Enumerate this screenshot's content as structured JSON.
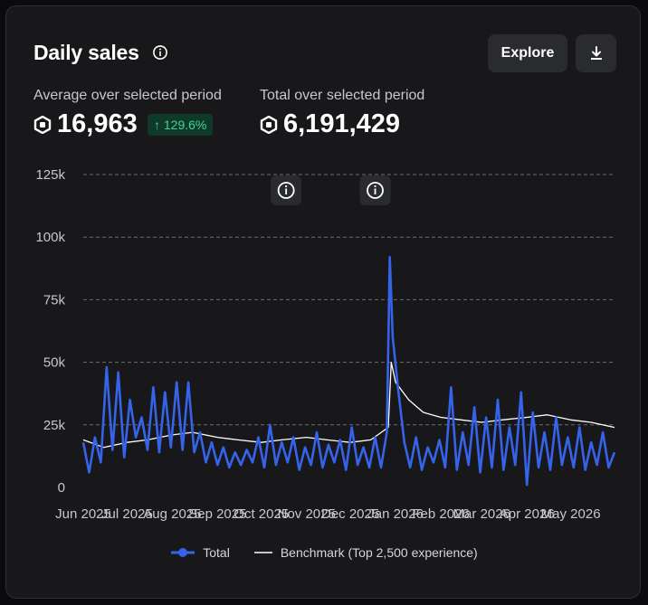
{
  "card": {
    "title": "Daily sales",
    "explore_label": "Explore",
    "download_icon": "download-icon",
    "info_icon": "info-icon"
  },
  "stats": {
    "average_label": "Average over selected period",
    "average_value": "16,963",
    "average_change": "↑ 129.6%",
    "total_label": "Total over selected period",
    "total_value": "6,191,429",
    "currency_icon": "robux-icon"
  },
  "colors": {
    "total": "#3563e9",
    "benchmark": "#ffffff",
    "grid": "#6b6c70",
    "badge_text": "#42d392"
  },
  "chart_data": {
    "type": "line",
    "title": "Daily sales",
    "ylim": [
      0,
      125000
    ],
    "yticks": [
      "0",
      "25k",
      "50k",
      "75k",
      "100k",
      "125k"
    ],
    "ytick_values": [
      0,
      25000,
      50000,
      75000,
      100000,
      125000
    ],
    "xticks": [
      "Jun 2025",
      "Jul 2025",
      "Aug 2025",
      "Sep 2025",
      "Oct 2025",
      "Nov 2025",
      "Dec 2025",
      "Jan 2026",
      "Feb 2026",
      "Mar 2026",
      "Apr 2026",
      "May 2026"
    ],
    "x_range": [
      "2025-06-01",
      "2026-05-31"
    ],
    "grid": "horizontal dashed",
    "legend_position": "bottom",
    "annotation_dates": [
      "2025-10-18",
      "2025-12-18"
    ],
    "series": [
      {
        "name": "Total",
        "color": "#3563e9",
        "x": [
          "2025-06-01",
          "2025-06-05",
          "2025-06-09",
          "2025-06-13",
          "2025-06-17",
          "2025-06-21",
          "2025-06-25",
          "2025-06-29",
          "2025-07-03",
          "2025-07-07",
          "2025-07-11",
          "2025-07-15",
          "2025-07-19",
          "2025-07-23",
          "2025-07-27",
          "2025-07-31",
          "2025-08-04",
          "2025-08-08",
          "2025-08-12",
          "2025-08-16",
          "2025-08-20",
          "2025-08-24",
          "2025-08-28",
          "2025-09-01",
          "2025-09-05",
          "2025-09-09",
          "2025-09-13",
          "2025-09-17",
          "2025-09-21",
          "2025-09-25",
          "2025-09-29",
          "2025-10-03",
          "2025-10-07",
          "2025-10-11",
          "2025-10-15",
          "2025-10-19",
          "2025-10-23",
          "2025-10-27",
          "2025-10-31",
          "2025-11-04",
          "2025-11-08",
          "2025-11-12",
          "2025-11-16",
          "2025-11-20",
          "2025-11-24",
          "2025-11-28",
          "2025-12-02",
          "2025-12-06",
          "2025-12-10",
          "2025-12-14",
          "2025-12-18",
          "2025-12-22",
          "2025-12-26",
          "2025-12-28",
          "2025-12-30",
          "2026-01-03",
          "2026-01-07",
          "2026-01-11",
          "2026-01-15",
          "2026-01-19",
          "2026-01-23",
          "2026-01-27",
          "2026-01-31",
          "2026-02-04",
          "2026-02-08",
          "2026-02-12",
          "2026-02-16",
          "2026-02-20",
          "2026-02-24",
          "2026-02-28",
          "2026-03-04",
          "2026-03-08",
          "2026-03-12",
          "2026-03-16",
          "2026-03-20",
          "2026-03-24",
          "2026-03-28",
          "2026-04-01",
          "2026-04-05",
          "2026-04-09",
          "2026-04-13",
          "2026-04-17",
          "2026-04-21",
          "2026-04-25",
          "2026-04-29",
          "2026-05-03",
          "2026-05-07",
          "2026-05-11",
          "2026-05-15",
          "2026-05-19",
          "2026-05-23",
          "2026-05-27",
          "2026-05-31"
        ],
        "values": [
          18000,
          6000,
          20000,
          10000,
          48000,
          15000,
          46000,
          12000,
          35000,
          20000,
          28000,
          15000,
          40000,
          14000,
          38000,
          16000,
          42000,
          15000,
          42000,
          14000,
          22000,
          10000,
          18000,
          9000,
          16000,
          8000,
          14000,
          9000,
          15000,
          10000,
          20000,
          8000,
          25000,
          9000,
          18000,
          10000,
          20000,
          7000,
          16000,
          9000,
          22000,
          8000,
          17000,
          10000,
          19000,
          7000,
          24000,
          9000,
          16000,
          8000,
          20000,
          8000,
          22000,
          92000,
          60000,
          38000,
          18000,
          8000,
          20000,
          7000,
          16000,
          10000,
          19000,
          8000,
          40000,
          7000,
          22000,
          9000,
          32000,
          6000,
          28000,
          8000,
          35000,
          7000,
          24000,
          9000,
          38000,
          1000,
          30000,
          8000,
          22000,
          7000,
          28000,
          9000,
          20000,
          8000,
          24000,
          7000,
          18000,
          9000,
          22000,
          8000,
          14000
        ]
      },
      {
        "name": "Benchmark (Top 2,500 experience)",
        "color": "#ffffff",
        "x": [
          "2025-06-01",
          "2025-06-15",
          "2025-07-01",
          "2025-07-15",
          "2025-08-01",
          "2025-08-15",
          "2025-09-01",
          "2025-09-15",
          "2025-10-01",
          "2025-10-15",
          "2025-11-01",
          "2025-11-15",
          "2025-12-01",
          "2025-12-15",
          "2025-12-27",
          "2025-12-29",
          "2026-01-01",
          "2026-01-10",
          "2026-01-20",
          "2026-02-01",
          "2026-02-15",
          "2026-03-01",
          "2026-03-15",
          "2026-04-01",
          "2026-04-15",
          "2026-05-01",
          "2026-05-15",
          "2026-05-31"
        ],
        "values": [
          19000,
          16000,
          18000,
          19000,
          21000,
          22000,
          20000,
          19000,
          18000,
          19000,
          20000,
          19000,
          18000,
          19000,
          24000,
          50000,
          42000,
          35000,
          30000,
          28000,
          27000,
          26000,
          27000,
          28000,
          29000,
          27000,
          26000,
          24000
        ]
      }
    ]
  }
}
